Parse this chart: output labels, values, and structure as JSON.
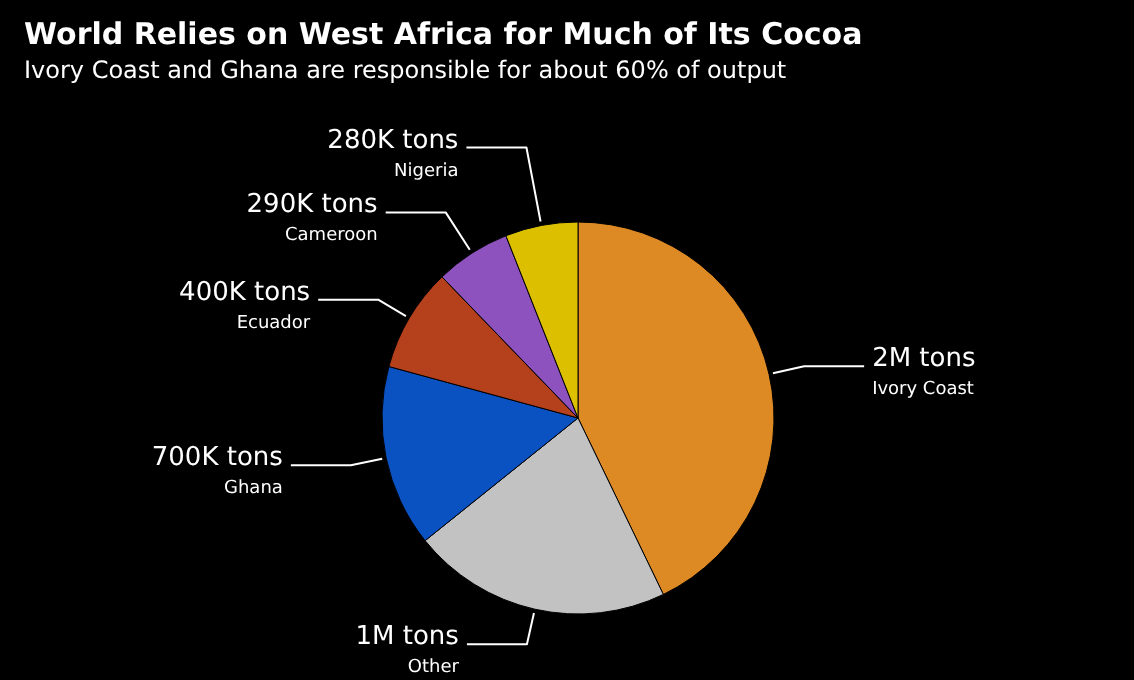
{
  "chart_data": {
    "type": "pie",
    "title": "World Relies on West Africa for Much of Its Cocoa",
    "subtitle": "Ivory Coast and Ghana are responsible for about 60% of output",
    "categories": [
      "Ivory Coast",
      "Other",
      "Ghana",
      "Ecuador",
      "Cameroon",
      "Nigeria"
    ],
    "values": [
      2000000,
      1000000,
      700000,
      400000,
      290000,
      280000
    ],
    "value_labels": [
      "2M tons",
      "1M tons",
      "700K tons",
      "400K tons",
      "290K tons",
      "280K tons"
    ],
    "colors": [
      "#de8a24",
      "#c2c2c2",
      "#0a52c2",
      "#b5401c",
      "#8d52be",
      "#dcc000"
    ],
    "legend": false
  }
}
